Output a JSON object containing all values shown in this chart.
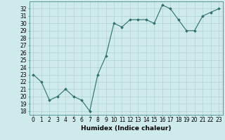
{
  "x": [
    0,
    1,
    2,
    3,
    4,
    5,
    6,
    7,
    8,
    9,
    10,
    11,
    12,
    13,
    14,
    15,
    16,
    17,
    18,
    19,
    20,
    21,
    22,
    23
  ],
  "y": [
    23,
    22,
    19.5,
    20,
    21,
    20,
    19.5,
    18,
    23,
    25.5,
    30,
    29.5,
    30.5,
    30.5,
    30.5,
    30,
    32.5,
    32,
    30.5,
    29,
    29,
    31,
    31.5,
    32
  ],
  "xlabel": "Humidex (Indice chaleur)",
  "ylim": [
    17.5,
    33
  ],
  "xlim": [
    -0.5,
    23.5
  ],
  "yticks": [
    18,
    19,
    20,
    21,
    22,
    23,
    24,
    25,
    26,
    27,
    28,
    29,
    30,
    31,
    32
  ],
  "xticks": [
    0,
    1,
    2,
    3,
    4,
    5,
    6,
    7,
    8,
    9,
    10,
    11,
    12,
    13,
    14,
    15,
    16,
    17,
    18,
    19,
    20,
    21,
    22,
    23
  ],
  "line_color": "#2e6e6e",
  "marker_color": "#2e6e6e",
  "bg_color": "#ceeaea",
  "grid_color": "#aacece",
  "tick_label_fontsize": 5.5,
  "xlabel_fontsize": 6.5
}
